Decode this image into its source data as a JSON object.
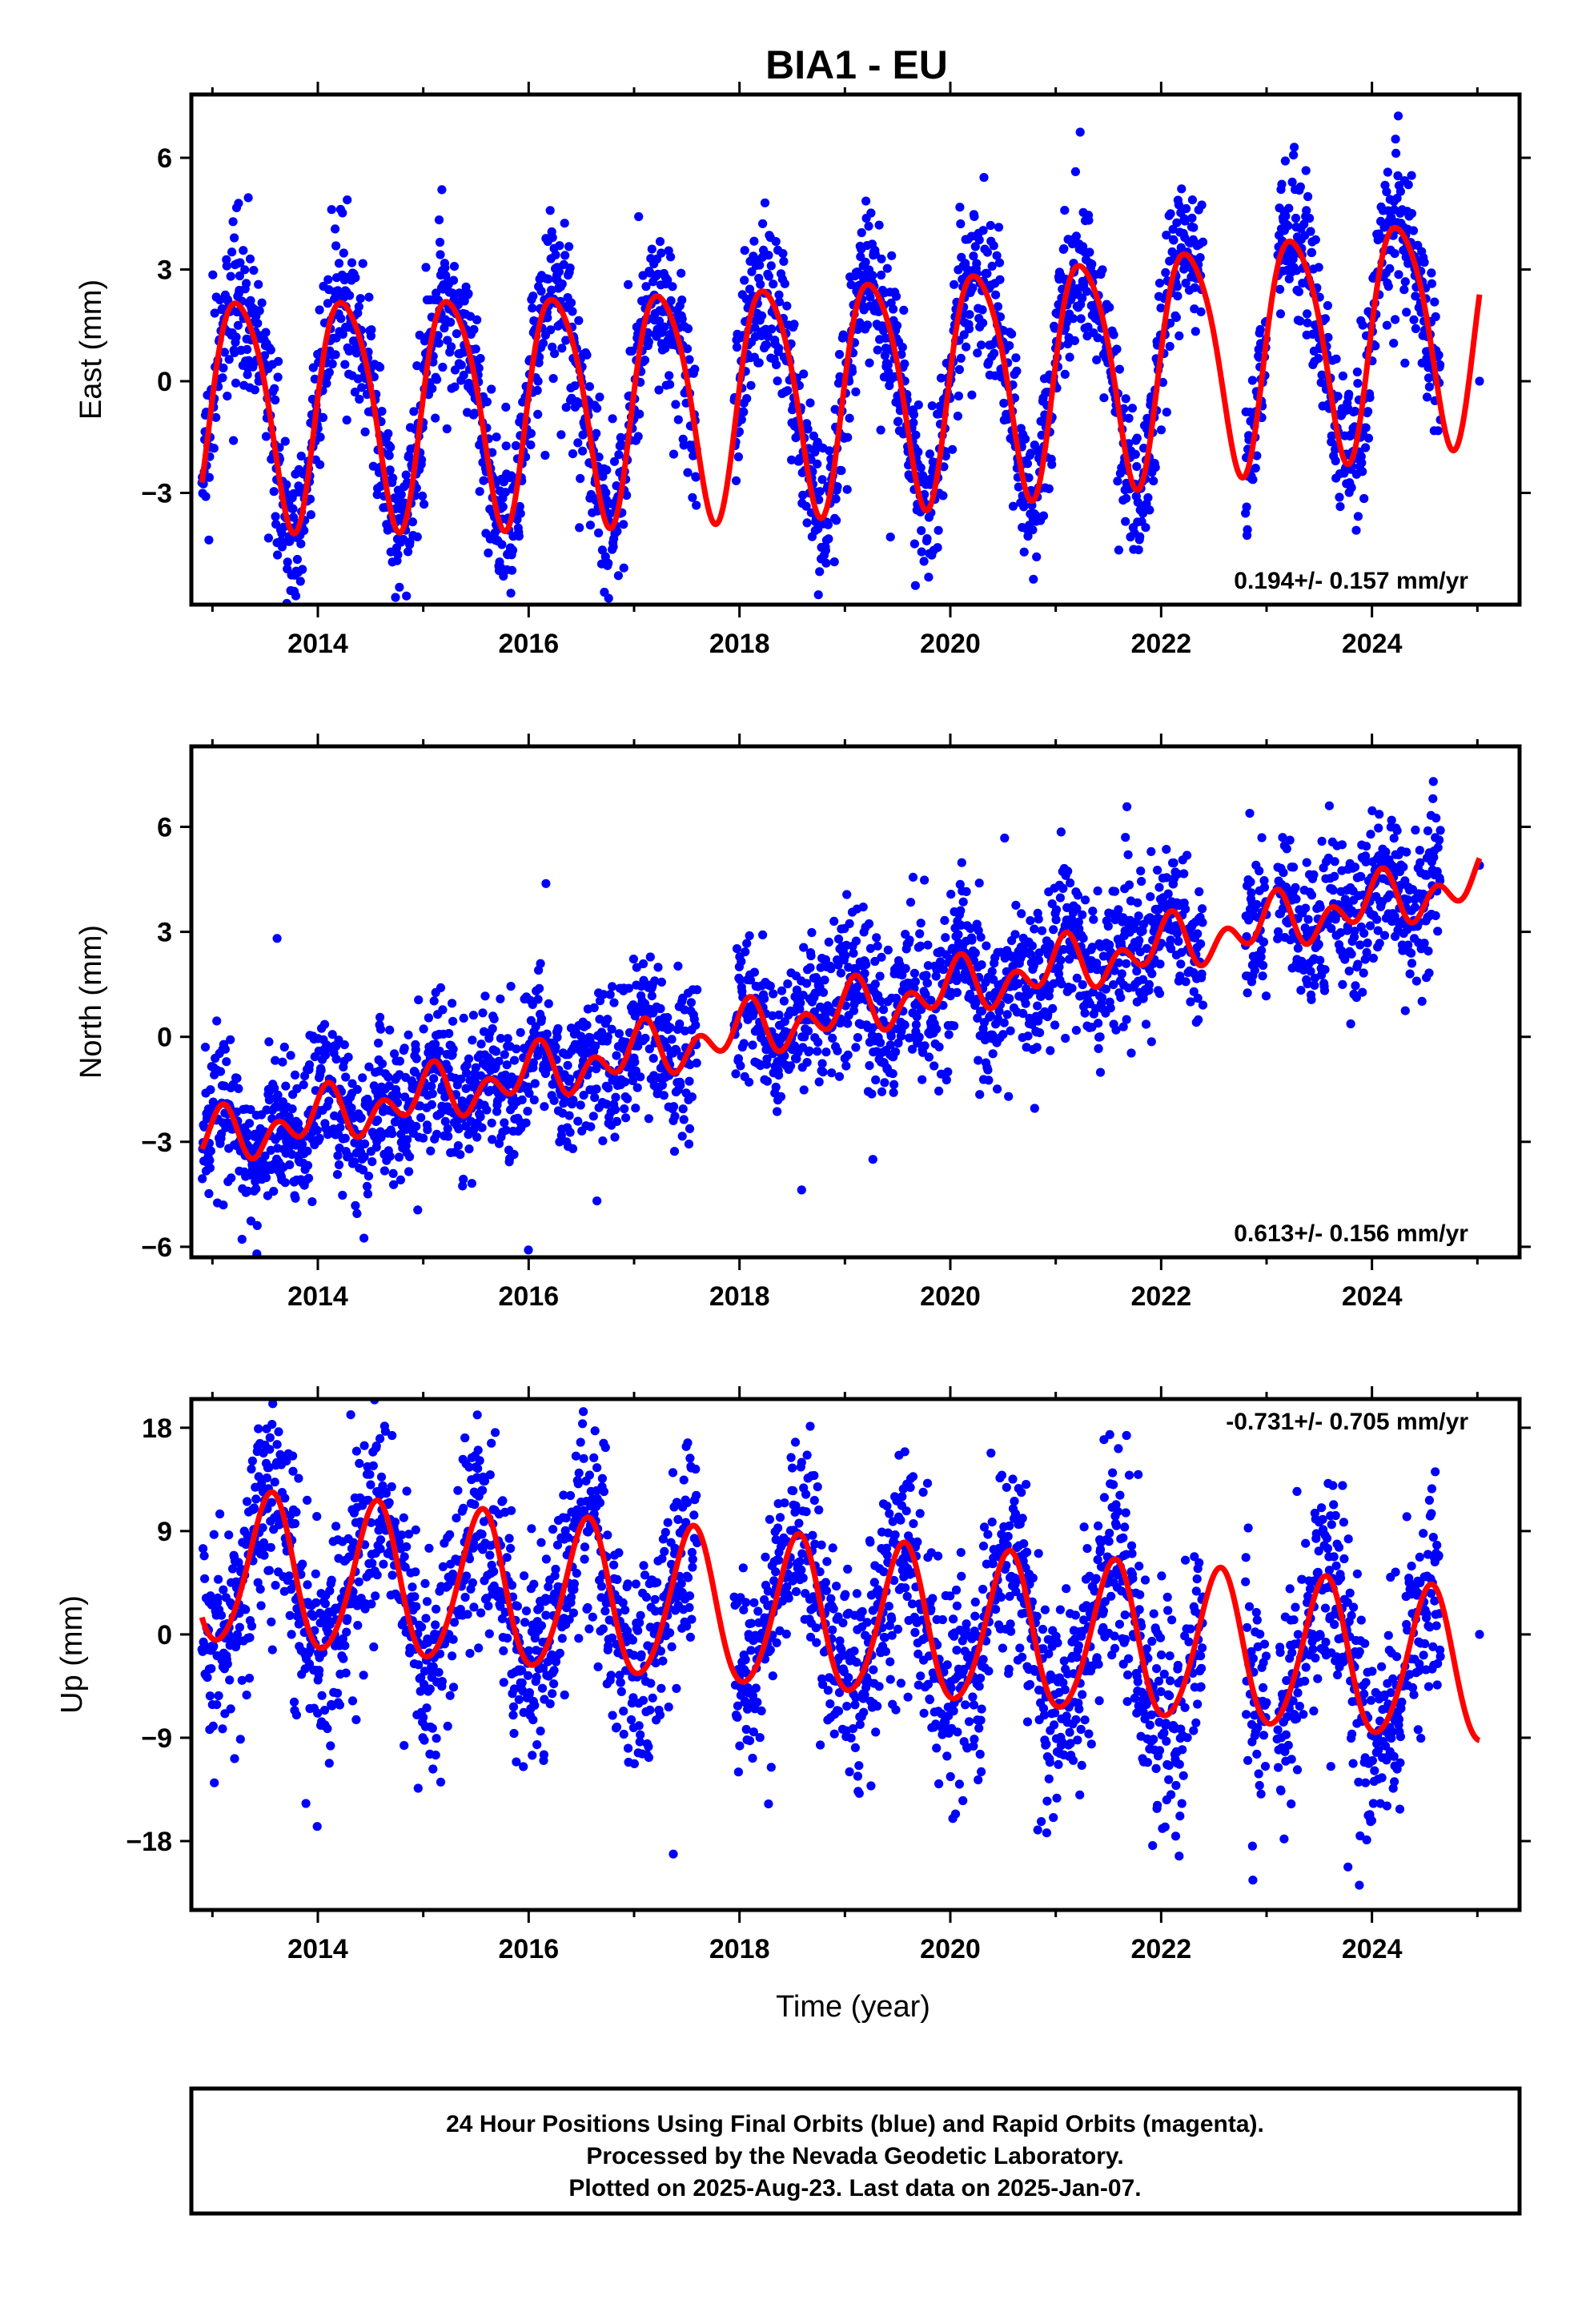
{
  "title": "BIA1 - EU",
  "caption": {
    "lines": [
      "24 Hour Positions Using Final Orbits (blue) and Rapid Orbits (magenta).",
      "Processed by the Nevada Geodetic Laboratory.",
      "Plotted on 2025-Aug-23. Last data on 2025-Jan-07."
    ]
  },
  "colors": {
    "final_orbits": "#0000ff",
    "model": "#ff0000",
    "frame": "#000000"
  },
  "chart_data": [
    {
      "type": "scatter",
      "component": "east",
      "ylabel": "East (mm)",
      "xlabel": "",
      "xlim": [
        2012.8,
        2025.4
      ],
      "ylim": [
        -6.0,
        7.7
      ],
      "yticks": [
        -3,
        0,
        3,
        6
      ],
      "ytick_labels": [
        "−3",
        "0",
        "3",
        "6"
      ],
      "xticks": [
        2014,
        2016,
        2018,
        2020,
        2022,
        2024
      ],
      "xtick_labels": [
        "2014",
        "2016",
        "2018",
        "2020",
        "2022",
        "2024"
      ],
      "rate_label": "0.194+/- 0.157 mm/yr",
      "rate_position": "bottom-right",
      "model": {
        "intercept": -0.65,
        "trend": 0.194,
        "amp1": 3.05,
        "phase1": -0.05,
        "amp2": 0.45,
        "phase2": 0.9,
        "drift_amp": -0.7
      },
      "noise_sd": 1.05,
      "series": [
        {
          "name": "",
          "style": "points",
          "color": "#0000ff",
          "segments": [
            [
              2012.9,
              2017.6
            ],
            [
              2017.95,
              2022.4
            ],
            [
              2022.8,
              2023.0
            ],
            [
              2023.1,
              2024.65
            ]
          ],
          "last_point": [
            2025.02,
            0.0
          ]
        },
        {
          "name": "",
          "style": "line",
          "color": "#ff0000",
          "x_range": [
            2012.9,
            2025.02
          ]
        }
      ]
    },
    {
      "type": "scatter",
      "component": "north",
      "ylabel": "North (mm)",
      "xlabel": "",
      "xlim": [
        2012.8,
        2025.4
      ],
      "ylim": [
        -6.3,
        8.3
      ],
      "yticks": [
        -6,
        -3,
        0,
        3,
        6
      ],
      "ytick_labels": [
        "−6",
        "−3",
        "0",
        "3",
        "6"
      ],
      "xticks": [
        2014,
        2016,
        2018,
        2020,
        2022,
        2024
      ],
      "xtick_labels": [
        "2014",
        "2016",
        "2018",
        "2020",
        "2022",
        "2024"
      ],
      "rate_label": "0.613+/- 0.156 mm/yr",
      "rate_position": "bottom-right",
      "model": {
        "intercept": -2.95,
        "trend": 0.613,
        "amp1": 0.45,
        "phase1": 1.3,
        "amp2": 0.55,
        "phase2": 0.2,
        "drift_amp": 0.0
      },
      "noise_sd": 1.05,
      "series": [
        {
          "name": "",
          "style": "points",
          "color": "#0000ff",
          "segments": [
            [
              2012.9,
              2017.6
            ],
            [
              2017.95,
              2022.4
            ],
            [
              2022.8,
              2023.0
            ],
            [
              2023.1,
              2024.65
            ]
          ],
          "last_point": [
            2025.02,
            4.9
          ]
        },
        {
          "name": "",
          "style": "line",
          "color": "#ff0000",
          "x_range": [
            2012.9,
            2025.02
          ]
        }
      ]
    },
    {
      "type": "scatter",
      "component": "up",
      "ylabel": "Up (mm)",
      "xlabel": "Time (year)",
      "xlim": [
        2012.8,
        2025.4
      ],
      "ylim": [
        -24.0,
        20.5
      ],
      "yticks": [
        -18,
        -9,
        0,
        9,
        18
      ],
      "ytick_labels": [
        "−18",
        "−9",
        "0",
        "9",
        "18"
      ],
      "xticks": [
        2014,
        2016,
        2018,
        2020,
        2022,
        2024
      ],
      "xtick_labels": [
        "2014",
        "2016",
        "2018",
        "2020",
        "2022",
        "2024"
      ],
      "rate_label": "-0.731+/- 0.705 mm/yr",
      "rate_position": "top-right",
      "model": {
        "intercept": 5.7,
        "trend": -0.731,
        "amp1": 6.6,
        "phase1": -1.9,
        "amp2": 0.6,
        "phase2": 0.3,
        "drift_amp": 0.0
      },
      "noise_sd": 4.5,
      "series": [
        {
          "name": "",
          "style": "points",
          "color": "#0000ff",
          "segments": [
            [
              2012.9,
              2017.6
            ],
            [
              2017.95,
              2022.4
            ],
            [
              2022.8,
              2023.0
            ],
            [
              2023.1,
              2024.65
            ]
          ],
          "last_point": [
            2025.02,
            0.0
          ]
        },
        {
          "name": "",
          "style": "line",
          "color": "#ff0000",
          "x_range": [
            2012.9,
            2025.02
          ]
        }
      ]
    }
  ]
}
